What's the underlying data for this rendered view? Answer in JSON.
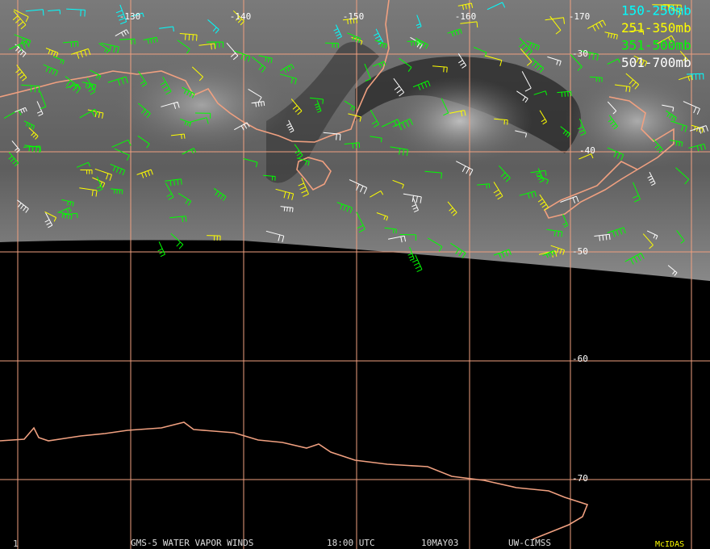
{
  "grid": {
    "longitude_labels": [
      "-130",
      "-140",
      "-150",
      "-160",
      "-170"
    ],
    "latitude_labels": [
      "-30",
      "-40",
      "-50",
      "-60",
      "-70"
    ]
  },
  "legend": [
    {
      "label": "150-250mb",
      "color": "#00ffff"
    },
    {
      "label": "251-350mb",
      "color": "#ffff00"
    },
    {
      "label": "351-500mb",
      "color": "#00ff00"
    },
    {
      "label": "501-700mb",
      "color": "#ffffff"
    }
  ],
  "footer": {
    "frame": "1",
    "title": "GMS-5 WATER VAPOR WINDS",
    "time": "18:00 UTC",
    "date": "10MAY03",
    "source": "UW-CIMSS",
    "software": "McIDAS"
  }
}
